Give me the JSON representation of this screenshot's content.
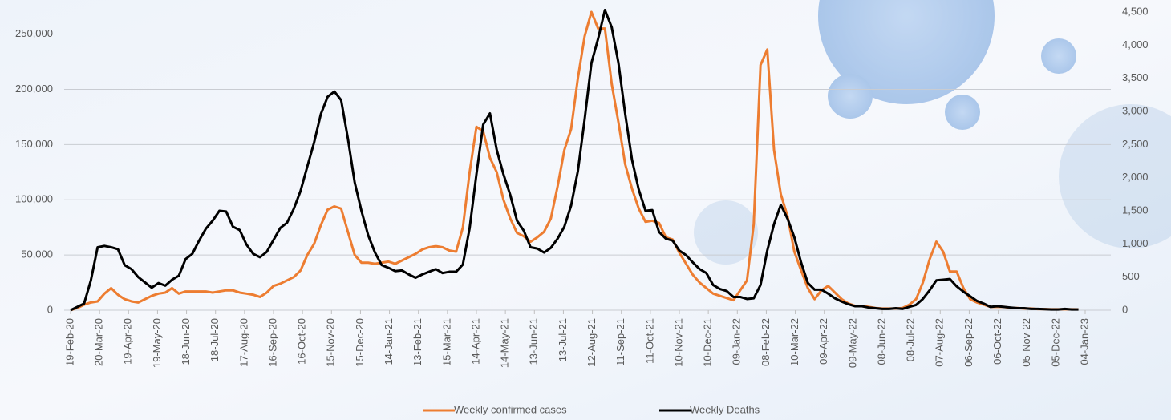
{
  "chart_data": {
    "type": "line",
    "x": [
      "2020-02-19",
      "2020-02-26",
      "2020-03-04",
      "2020-03-11",
      "2020-03-18",
      "2020-03-25",
      "2020-04-01",
      "2020-04-08",
      "2020-04-15",
      "2020-04-22",
      "2020-04-29",
      "2020-05-06",
      "2020-05-13",
      "2020-05-20",
      "2020-05-27",
      "2020-06-03",
      "2020-06-10",
      "2020-06-17",
      "2020-06-24",
      "2020-07-01",
      "2020-07-08",
      "2020-07-15",
      "2020-07-22",
      "2020-07-29",
      "2020-08-05",
      "2020-08-12",
      "2020-08-19",
      "2020-08-26",
      "2020-09-02",
      "2020-09-09",
      "2020-09-16",
      "2020-09-23",
      "2020-09-30",
      "2020-10-07",
      "2020-10-14",
      "2020-10-21",
      "2020-10-28",
      "2020-11-04",
      "2020-11-11",
      "2020-11-18",
      "2020-11-25",
      "2020-12-02",
      "2020-12-09",
      "2020-12-16",
      "2020-12-23",
      "2020-12-30",
      "2021-01-06",
      "2021-01-13",
      "2021-01-20",
      "2021-01-27",
      "2021-02-03",
      "2021-02-10",
      "2021-02-17",
      "2021-02-24",
      "2021-03-03",
      "2021-03-10",
      "2021-03-17",
      "2021-03-24",
      "2021-03-31",
      "2021-04-07",
      "2021-04-14",
      "2021-04-21",
      "2021-04-28",
      "2021-05-05",
      "2021-05-12",
      "2021-05-19",
      "2021-05-26",
      "2021-06-02",
      "2021-06-09",
      "2021-06-16",
      "2021-06-23",
      "2021-06-30",
      "2021-07-07",
      "2021-07-14",
      "2021-07-21",
      "2021-07-28",
      "2021-08-04",
      "2021-08-11",
      "2021-08-18",
      "2021-08-25",
      "2021-09-01",
      "2021-09-08",
      "2021-09-15",
      "2021-09-22",
      "2021-09-29",
      "2021-10-06",
      "2021-10-13",
      "2021-10-20",
      "2021-10-27",
      "2021-11-03",
      "2021-11-10",
      "2021-11-17",
      "2021-11-24",
      "2021-12-01",
      "2021-12-08",
      "2021-12-15",
      "2021-12-22",
      "2021-12-29",
      "2022-01-05",
      "2022-01-12",
      "2022-01-19",
      "2022-01-26",
      "2022-02-02",
      "2022-02-09",
      "2022-02-16",
      "2022-02-23",
      "2022-03-02",
      "2022-03-09",
      "2022-03-16",
      "2022-03-23",
      "2022-03-30",
      "2022-04-06",
      "2022-04-13",
      "2022-04-20",
      "2022-04-27",
      "2022-05-04",
      "2022-05-11",
      "2022-05-18",
      "2022-05-25",
      "2022-06-01",
      "2022-06-08",
      "2022-06-15",
      "2022-06-22",
      "2022-06-29",
      "2022-07-06",
      "2022-07-13",
      "2022-07-20",
      "2022-07-27",
      "2022-08-03",
      "2022-08-10",
      "2022-08-17",
      "2022-08-24",
      "2022-08-31",
      "2022-09-07",
      "2022-09-14",
      "2022-09-21",
      "2022-09-28",
      "2022-10-05",
      "2022-10-12",
      "2022-10-19",
      "2022-10-26",
      "2022-11-02",
      "2022-11-09",
      "2022-11-16",
      "2022-11-23",
      "2022-11-30",
      "2022-12-07",
      "2022-12-14",
      "2022-12-21",
      "2022-12-28"
    ],
    "series": [
      {
        "name": "Weekly confirmed cases",
        "color": "#ed7d31",
        "axis": "y",
        "values": [
          0,
          2000,
          5000,
          7000,
          8000,
          15000,
          20000,
          14000,
          10000,
          8000,
          7000,
          10000,
          13000,
          15000,
          16000,
          20000,
          15000,
          17000,
          17000,
          17000,
          17000,
          16000,
          17000,
          18000,
          18000,
          16000,
          15000,
          14000,
          12000,
          16000,
          22000,
          24000,
          27000,
          30000,
          36000,
          50000,
          60000,
          77000,
          91000,
          94000,
          92000,
          71000,
          50000,
          43000,
          43000,
          42000,
          43000,
          44000,
          42000,
          45000,
          48000,
          51000,
          55000,
          57000,
          58000,
          57000,
          54000,
          53000,
          75000,
          125000,
          166000,
          162000,
          138000,
          125000,
          100000,
          83000,
          70000,
          67000,
          62000,
          66000,
          71000,
          83000,
          112000,
          145000,
          164000,
          210000,
          248000,
          270000,
          255000,
          255000,
          205000,
          170000,
          132000,
          110000,
          92000,
          80000,
          81000,
          79000,
          66000,
          64000,
          52000,
          42000,
          32000,
          25000,
          20000,
          15000,
          13000,
          11000,
          9000,
          18000,
          27000,
          78000,
          222000,
          236000,
          145000,
          105000,
          85000,
          53000,
          36000,
          20000,
          10000,
          18000,
          22000,
          16000,
          10000,
          6000,
          4000,
          4000,
          3000,
          2000,
          1500,
          1500,
          1500,
          2000,
          5000,
          10000,
          25000,
          46000,
          62000,
          53000,
          35000,
          35000,
          20000,
          10000,
          7000,
          5000,
          3000,
          3000,
          3000,
          2000,
          2000,
          1500,
          1500,
          1000,
          1000,
          800,
          800,
          800,
          800,
          700
        ]
      },
      {
        "name": "Weekly Deaths",
        "color": "#000000",
        "axis": "y2",
        "values": [
          0,
          50,
          100,
          450,
          950,
          970,
          950,
          920,
          680,
          620,
          500,
          420,
          340,
          410,
          370,
          460,
          520,
          770,
          850,
          1050,
          1230,
          1350,
          1500,
          1490,
          1260,
          1210,
          990,
          850,
          800,
          880,
          1060,
          1240,
          1320,
          1530,
          1800,
          2170,
          2530,
          2960,
          3220,
          3300,
          3170,
          2590,
          1930,
          1500,
          1130,
          870,
          680,
          640,
          590,
          600,
          540,
          490,
          540,
          580,
          620,
          560,
          580,
          580,
          690,
          1240,
          2050,
          2800,
          2970,
          2420,
          2050,
          1740,
          1350,
          1200,
          950,
          930,
          870,
          940,
          1080,
          1260,
          1580,
          2100,
          2880,
          3730,
          4100,
          4530,
          4270,
          3730,
          2960,
          2270,
          1820,
          1500,
          1510,
          1180,
          1080,
          1050,
          900,
          830,
          720,
          620,
          560,
          380,
          320,
          290,
          200,
          200,
          170,
          180,
          380,
          900,
          1300,
          1590,
          1380,
          1100,
          720,
          410,
          310,
          310,
          250,
          180,
          130,
          90,
          60,
          60,
          40,
          30,
          20,
          20,
          30,
          20,
          50,
          80,
          170,
          300,
          450,
          460,
          470,
          360,
          280,
          210,
          140,
          100,
          50,
          60,
          50,
          40,
          30,
          30,
          20,
          20,
          15,
          10,
          10,
          20,
          10,
          10
        ]
      }
    ],
    "xlim": [
      "2020-02-19",
      "2023-01-04"
    ],
    "xticks": [
      {
        "value": "2020-02-19",
        "label": "19-Feb-20"
      },
      {
        "value": "2020-03-20",
        "label": "20-Mar-20"
      },
      {
        "value": "2020-04-19",
        "label": "19-Apr-20"
      },
      {
        "value": "2020-05-19",
        "label": "19-May-20"
      },
      {
        "value": "2020-06-18",
        "label": "18-Jun-20"
      },
      {
        "value": "2020-07-18",
        "label": "18-Jul-20"
      },
      {
        "value": "2020-08-17",
        "label": "17-Aug-20"
      },
      {
        "value": "2020-09-16",
        "label": "16-Sep-20"
      },
      {
        "value": "2020-10-16",
        "label": "16-Oct-20"
      },
      {
        "value": "2020-11-15",
        "label": "15-Nov-20"
      },
      {
        "value": "2020-12-15",
        "label": "15-Dec-20"
      },
      {
        "value": "2021-01-14",
        "label": "14-Jan-21"
      },
      {
        "value": "2021-02-13",
        "label": "13-Feb-21"
      },
      {
        "value": "2021-03-15",
        "label": "15-Mar-21"
      },
      {
        "value": "2021-04-14",
        "label": "14-Apr-21"
      },
      {
        "value": "2021-05-14",
        "label": "14-May-21"
      },
      {
        "value": "2021-06-13",
        "label": "13-Jun-21"
      },
      {
        "value": "2021-07-13",
        "label": "13-Jul-21"
      },
      {
        "value": "2021-08-12",
        "label": "12-Aug-21"
      },
      {
        "value": "2021-09-11",
        "label": "11-Sep-21"
      },
      {
        "value": "2021-10-11",
        "label": "11-Oct-21"
      },
      {
        "value": "2021-11-10",
        "label": "10-Nov-21"
      },
      {
        "value": "2021-12-10",
        "label": "10-Dec-21"
      },
      {
        "value": "2022-01-09",
        "label": "09-Jan-22"
      },
      {
        "value": "2022-02-08",
        "label": "08-Feb-22"
      },
      {
        "value": "2022-03-10",
        "label": "10-Mar-22"
      },
      {
        "value": "2022-04-09",
        "label": "09-Apr-22"
      },
      {
        "value": "2022-05-09",
        "label": "09-May-22"
      },
      {
        "value": "2022-06-08",
        "label": "08-Jun-22"
      },
      {
        "value": "2022-07-08",
        "label": "08-Jul-22"
      },
      {
        "value": "2022-08-07",
        "label": "07-Aug-22"
      },
      {
        "value": "2022-09-06",
        "label": "06-Sep-22"
      },
      {
        "value": "2022-10-06",
        "label": "06-Oct-22"
      },
      {
        "value": "2022-11-05",
        "label": "05-Nov-22"
      },
      {
        "value": "2022-12-05",
        "label": "05-Dec-22"
      },
      {
        "value": "2023-01-04",
        "label": "04-Jan-23"
      }
    ],
    "ylim": [
      0,
      270000
    ],
    "yticks": [
      0,
      {
        "value": 50000,
        "label": "50,000"
      },
      {
        "value": 100000,
        "label": "100,000"
      },
      {
        "value": 150000,
        "label": "150,000"
      },
      {
        "value": 200000,
        "label": "200,000"
      },
      {
        "value": 250000,
        "label": "250,000"
      }
    ],
    "y2lim": [
      0,
      4500
    ],
    "y2ticks": [
      0,
      {
        "value": 500,
        "label": "500"
      },
      {
        "value": 1000,
        "label": "1,000"
      },
      {
        "value": 1500,
        "label": "1,500"
      },
      {
        "value": 2000,
        "label": "2,000"
      },
      {
        "value": 2500,
        "label": "2,500"
      },
      {
        "value": 3000,
        "label": "3,000"
      },
      {
        "value": 3500,
        "label": "3,500"
      },
      {
        "value": 4000,
        "label": "4,000"
      },
      {
        "value": 4500,
        "label": "4,500"
      }
    ],
    "grid": true,
    "legend": "bottom"
  }
}
